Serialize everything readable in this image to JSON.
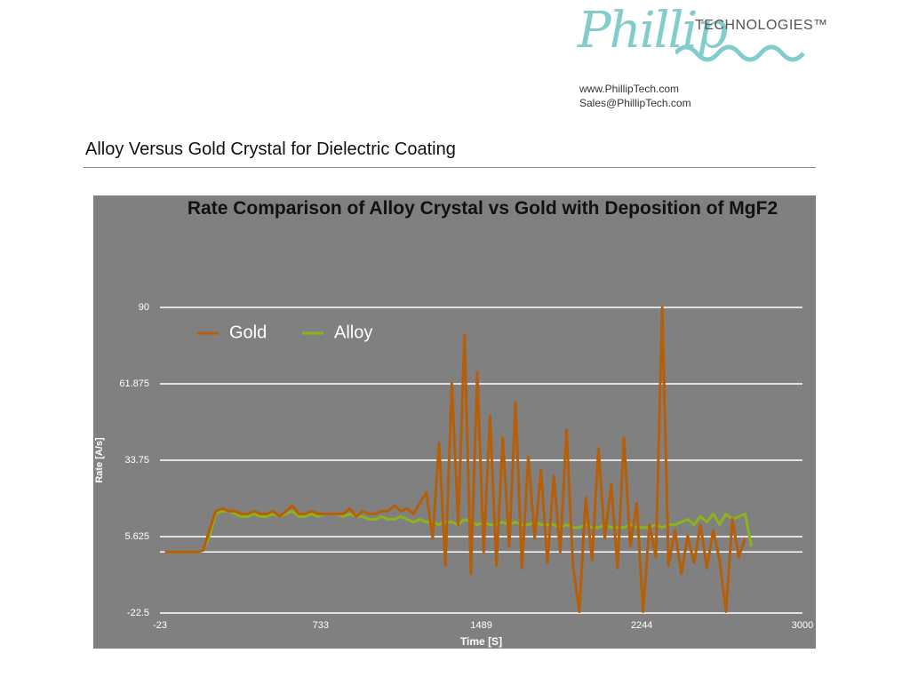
{
  "header": {
    "logo": "Phillip",
    "logo_suffix": "TECHNOLOGIES™",
    "website": "www.PhillipTech.com",
    "email": "Sales@PhillipTech.com"
  },
  "document_title": "Alloy Versus Gold Crystal for Dielectric Coating",
  "chart_data": {
    "type": "line",
    "title": "Rate Comparison of Alloy Crystal vs Gold with Deposition of MgF2",
    "x_label": "Time [S]",
    "y_label": "Rate [A/s]",
    "xlim": [
      -23,
      3000
    ],
    "xticks": [
      -23,
      733,
      1489,
      2244,
      3000
    ],
    "ylim": [
      -22.5,
      90
    ],
    "yticks": [
      -22.5,
      5.625,
      33.75,
      61.875,
      90
    ],
    "grid": true,
    "legend": "top-left",
    "x": [
      0,
      30,
      60,
      90,
      120,
      150,
      180,
      210,
      240,
      270,
      300,
      330,
      360,
      390,
      420,
      450,
      480,
      510,
      540,
      570,
      600,
      630,
      660,
      690,
      720,
      750,
      780,
      810,
      840,
      870,
      900,
      930,
      960,
      990,
      1020,
      1050,
      1080,
      1110,
      1140,
      1170,
      1200,
      1230,
      1260,
      1290,
      1320,
      1350,
      1380,
      1410,
      1440,
      1470,
      1500,
      1530,
      1560,
      1590,
      1620,
      1650,
      1680,
      1710,
      1740,
      1770,
      1800,
      1830,
      1860,
      1890,
      1920,
      1950,
      1980,
      2010,
      2040,
      2070,
      2100,
      2130,
      2160,
      2190,
      2220,
      2250,
      2280,
      2310,
      2340,
      2370,
      2400,
      2430,
      2460,
      2490,
      2520,
      2550,
      2580,
      2610,
      2640,
      2670,
      2700,
      2730,
      2760
    ],
    "series": [
      {
        "name": "Gold",
        "color": "#b65f08",
        "values": [
          0,
          0,
          0,
          0,
          0,
          0,
          0.5,
          8,
          15,
          16,
          15,
          15,
          14,
          14,
          15,
          14,
          14,
          15,
          13,
          15,
          17,
          14,
          14,
          15,
          14,
          14,
          14,
          14,
          14,
          16,
          13,
          15,
          14,
          14,
          15,
          15,
          17,
          15,
          16,
          14,
          18,
          22,
          5,
          40,
          -5,
          62,
          10,
          80,
          -8,
          66,
          0,
          50,
          -5,
          42,
          2,
          55,
          -6,
          35,
          5,
          30,
          -4,
          28,
          0,
          45,
          -5,
          -22,
          20,
          -3,
          38,
          5,
          25,
          -6,
          42,
          2,
          18,
          -22,
          10,
          -2,
          90,
          -5,
          8,
          -8,
          6,
          -4,
          10,
          -6,
          8,
          -3,
          -22,
          12,
          -2,
          5,
          null
        ]
      },
      {
        "name": "Alloy",
        "color": "#8cb31a",
        "values": [
          0,
          0,
          0,
          0,
          0,
          0,
          0.5,
          6,
          14,
          15,
          15,
          14,
          13,
          13,
          14,
          13,
          13,
          14,
          13,
          14,
          15,
          13,
          13,
          14,
          13,
          14,
          14,
          14,
          13,
          14,
          13,
          13,
          12,
          12,
          13,
          12,
          12,
          13,
          12,
          11,
          12,
          11,
          11,
          10,
          11,
          11,
          10,
          12,
          11,
          10,
          11,
          10,
          10,
          11,
          10,
          11,
          10,
          10,
          11,
          10,
          10,
          10,
          9,
          10,
          9,
          9,
          10,
          9,
          9,
          10,
          9,
          9,
          9,
          10,
          9,
          9,
          9,
          10,
          9,
          10,
          10,
          11,
          12,
          10,
          13,
          11,
          14,
          10,
          14,
          12,
          13,
          14,
          2
        ]
      }
    ]
  }
}
